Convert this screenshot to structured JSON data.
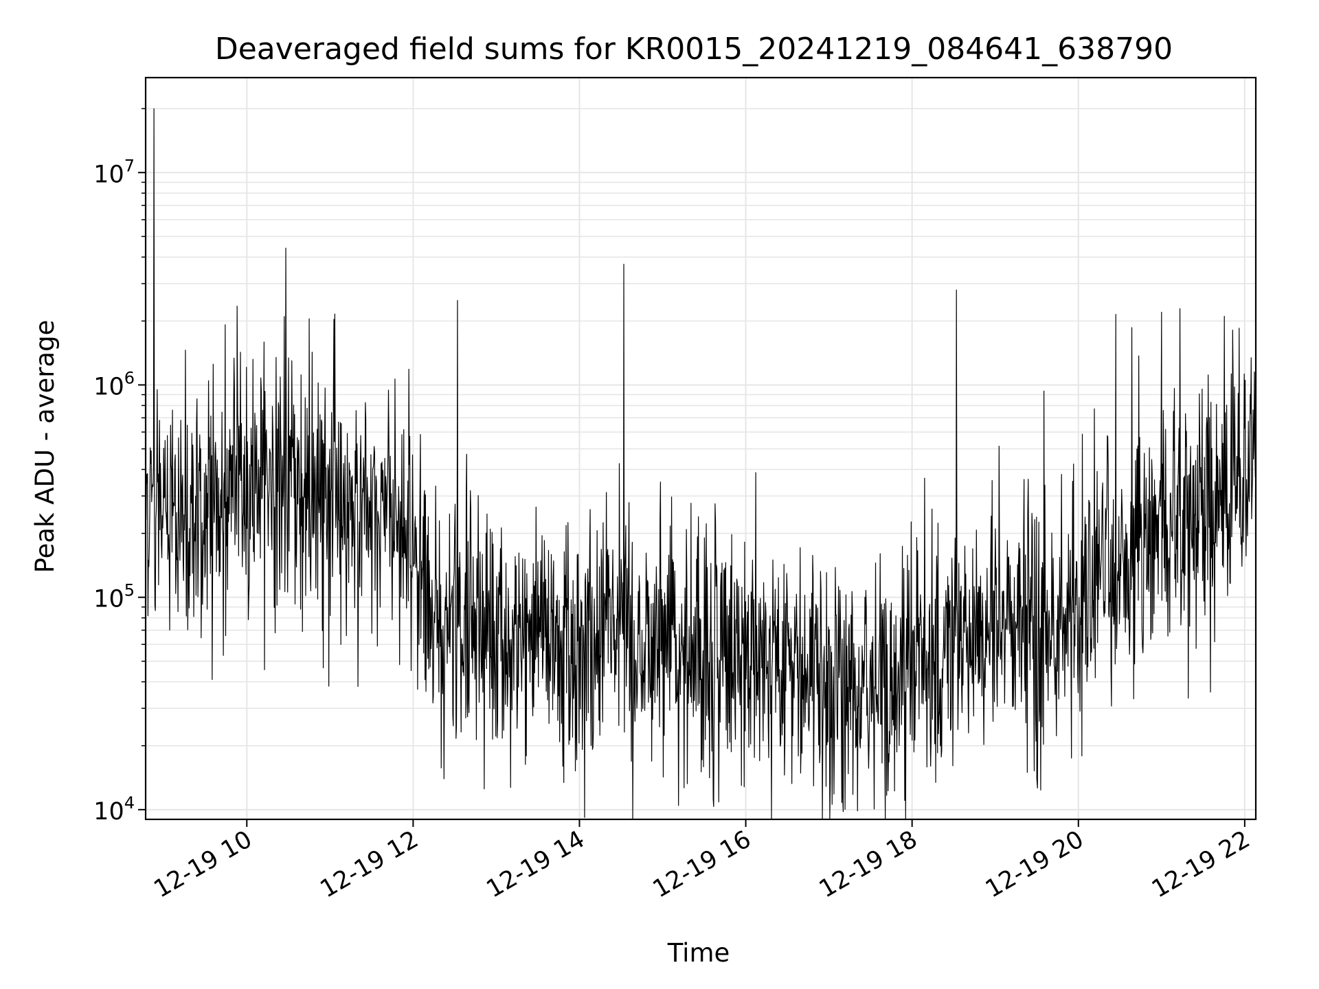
{
  "chart_data": {
    "type": "line",
    "title": "Deaveraged field sums for KR0015_20241219_084641_638790",
    "xlabel": "Time",
    "ylabel": "Peak ADU - average",
    "yscale": "log",
    "xlim": [
      "12-19 08:47",
      "12-19 22:08"
    ],
    "ylim": [
      9000,
      28000000
    ],
    "grid": true,
    "line_color": "#000000",
    "grid_color": "#e6e6e6",
    "x_ticks": [
      {
        "value": "12-19 10:00",
        "label": "12-19 10"
      },
      {
        "value": "12-19 12:00",
        "label": "12-19 12"
      },
      {
        "value": "12-19 14:00",
        "label": "12-19 14"
      },
      {
        "value": "12-19 16:00",
        "label": "12-19 16"
      },
      {
        "value": "12-19 18:00",
        "label": "12-19 18"
      },
      {
        "value": "12-19 20:00",
        "label": "12-19 20"
      },
      {
        "value": "12-19 22:00",
        "label": "12-19 22"
      }
    ],
    "y_ticks": [
      {
        "value": 10000,
        "base": "10",
        "exp": "4"
      },
      {
        "value": 100000,
        "base": "10",
        "exp": "5"
      },
      {
        "value": 1000000,
        "base": "10",
        "exp": "6"
      },
      {
        "value": 10000000,
        "base": "10",
        "exp": "7"
      }
    ],
    "series": [
      {
        "x": [
          "12-19 08:47",
          "12-19 08:53",
          "12-19 09:00",
          "12-19 09:15",
          "12-19 09:30",
          "12-19 09:45",
          "12-19 10:00",
          "12-19 10:15",
          "12-19 10:30",
          "12-19 10:45",
          "12-19 11:00",
          "12-19 11:15",
          "12-19 11:30",
          "12-19 11:45",
          "12-19 12:00",
          "12-19 12:15",
          "12-19 12:30",
          "12-19 12:45",
          "12-19 13:00",
          "12-19 13:15",
          "12-19 13:30",
          "12-19 13:45",
          "12-19 14:00",
          "12-19 14:15",
          "12-19 14:30",
          "12-19 14:45",
          "12-19 15:00",
          "12-19 15:15",
          "12-19 15:30",
          "12-19 15:45",
          "12-19 16:00",
          "12-19 16:15",
          "12-19 16:30",
          "12-19 16:45",
          "12-19 17:00",
          "12-19 17:15",
          "12-19 17:30",
          "12-19 17:45",
          "12-19 18:00",
          "12-19 18:15",
          "12-19 18:30",
          "12-19 18:45",
          "12-19 19:00",
          "12-19 19:15",
          "12-19 19:30",
          "12-19 19:45",
          "12-19 20:00",
          "12-19 20:15",
          "12-19 20:30",
          "12-19 20:45",
          "12-19 21:00",
          "12-19 21:15",
          "12-19 21:30",
          "12-19 21:45",
          "12-19 22:00",
          "12-19 22:08"
        ],
        "y": [
          300000,
          280000,
          250000,
          260000,
          270000,
          300000,
          350000,
          380000,
          300000,
          280000,
          270000,
          260000,
          250000,
          230000,
          140000,
          90000,
          75000,
          70000,
          68000,
          65000,
          60000,
          58000,
          56000,
          55000,
          60000,
          58000,
          55000,
          52000,
          50000,
          52000,
          48000,
          45000,
          42000,
          40000,
          38000,
          36000,
          38000,
          42000,
          48000,
          55000,
          62000,
          70000,
          75000,
          75000,
          80000,
          82000,
          90000,
          110000,
          140000,
          180000,
          210000,
          240000,
          280000,
          300000,
          380000,
          550000
        ],
        "spikes": [
          {
            "x": "12-19 08:53",
            "y": 20000000
          },
          {
            "x": "12-19 09:53",
            "y": 2350000
          },
          {
            "x": "12-19 10:27",
            "y": 2100000
          },
          {
            "x": "12-19 10:45",
            "y": 2050000
          },
          {
            "x": "12-19 12:32",
            "y": 2500000
          },
          {
            "x": "12-19 14:32",
            "y": 3700000
          },
          {
            "x": "12-19 18:32",
            "y": 2800000
          },
          {
            "x": "12-19 20:27",
            "y": 2150000
          },
          {
            "x": "12-19 21:00",
            "y": 2200000
          },
          {
            "x": "12-19 21:56",
            "y": 1850000
          }
        ],
        "dips": [
          {
            "x": "12-19 09:35",
            "y": 41000
          },
          {
            "x": "12-19 13:48",
            "y": 16000
          },
          {
            "x": "12-19 16:10",
            "y": 17000
          },
          {
            "x": "12-19 17:01",
            "y": 13500
          },
          {
            "x": "12-19 19:30",
            "y": 14000
          },
          {
            "x": "12-19 19:55",
            "y": 17500
          }
        ]
      }
    ]
  }
}
